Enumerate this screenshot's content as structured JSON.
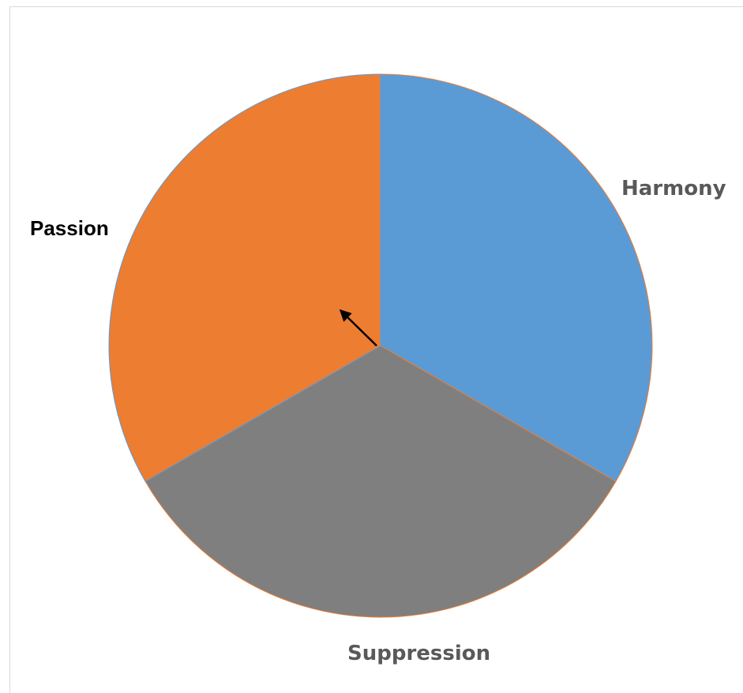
{
  "chart_data": {
    "type": "pie",
    "title": "",
    "slices": [
      {
        "label": "Harmony",
        "value": 33.33,
        "color": "#5b9bd5"
      },
      {
        "label": "Suppression",
        "value": 33.33,
        "color": "#7f7f7f"
      },
      {
        "label": "Passion",
        "value": 33.33,
        "color": "#ed7d31"
      }
    ],
    "legend": "none",
    "annotations": [
      {
        "type": "arrow",
        "direction": "up-left",
        "color": "#000000"
      }
    ]
  }
}
